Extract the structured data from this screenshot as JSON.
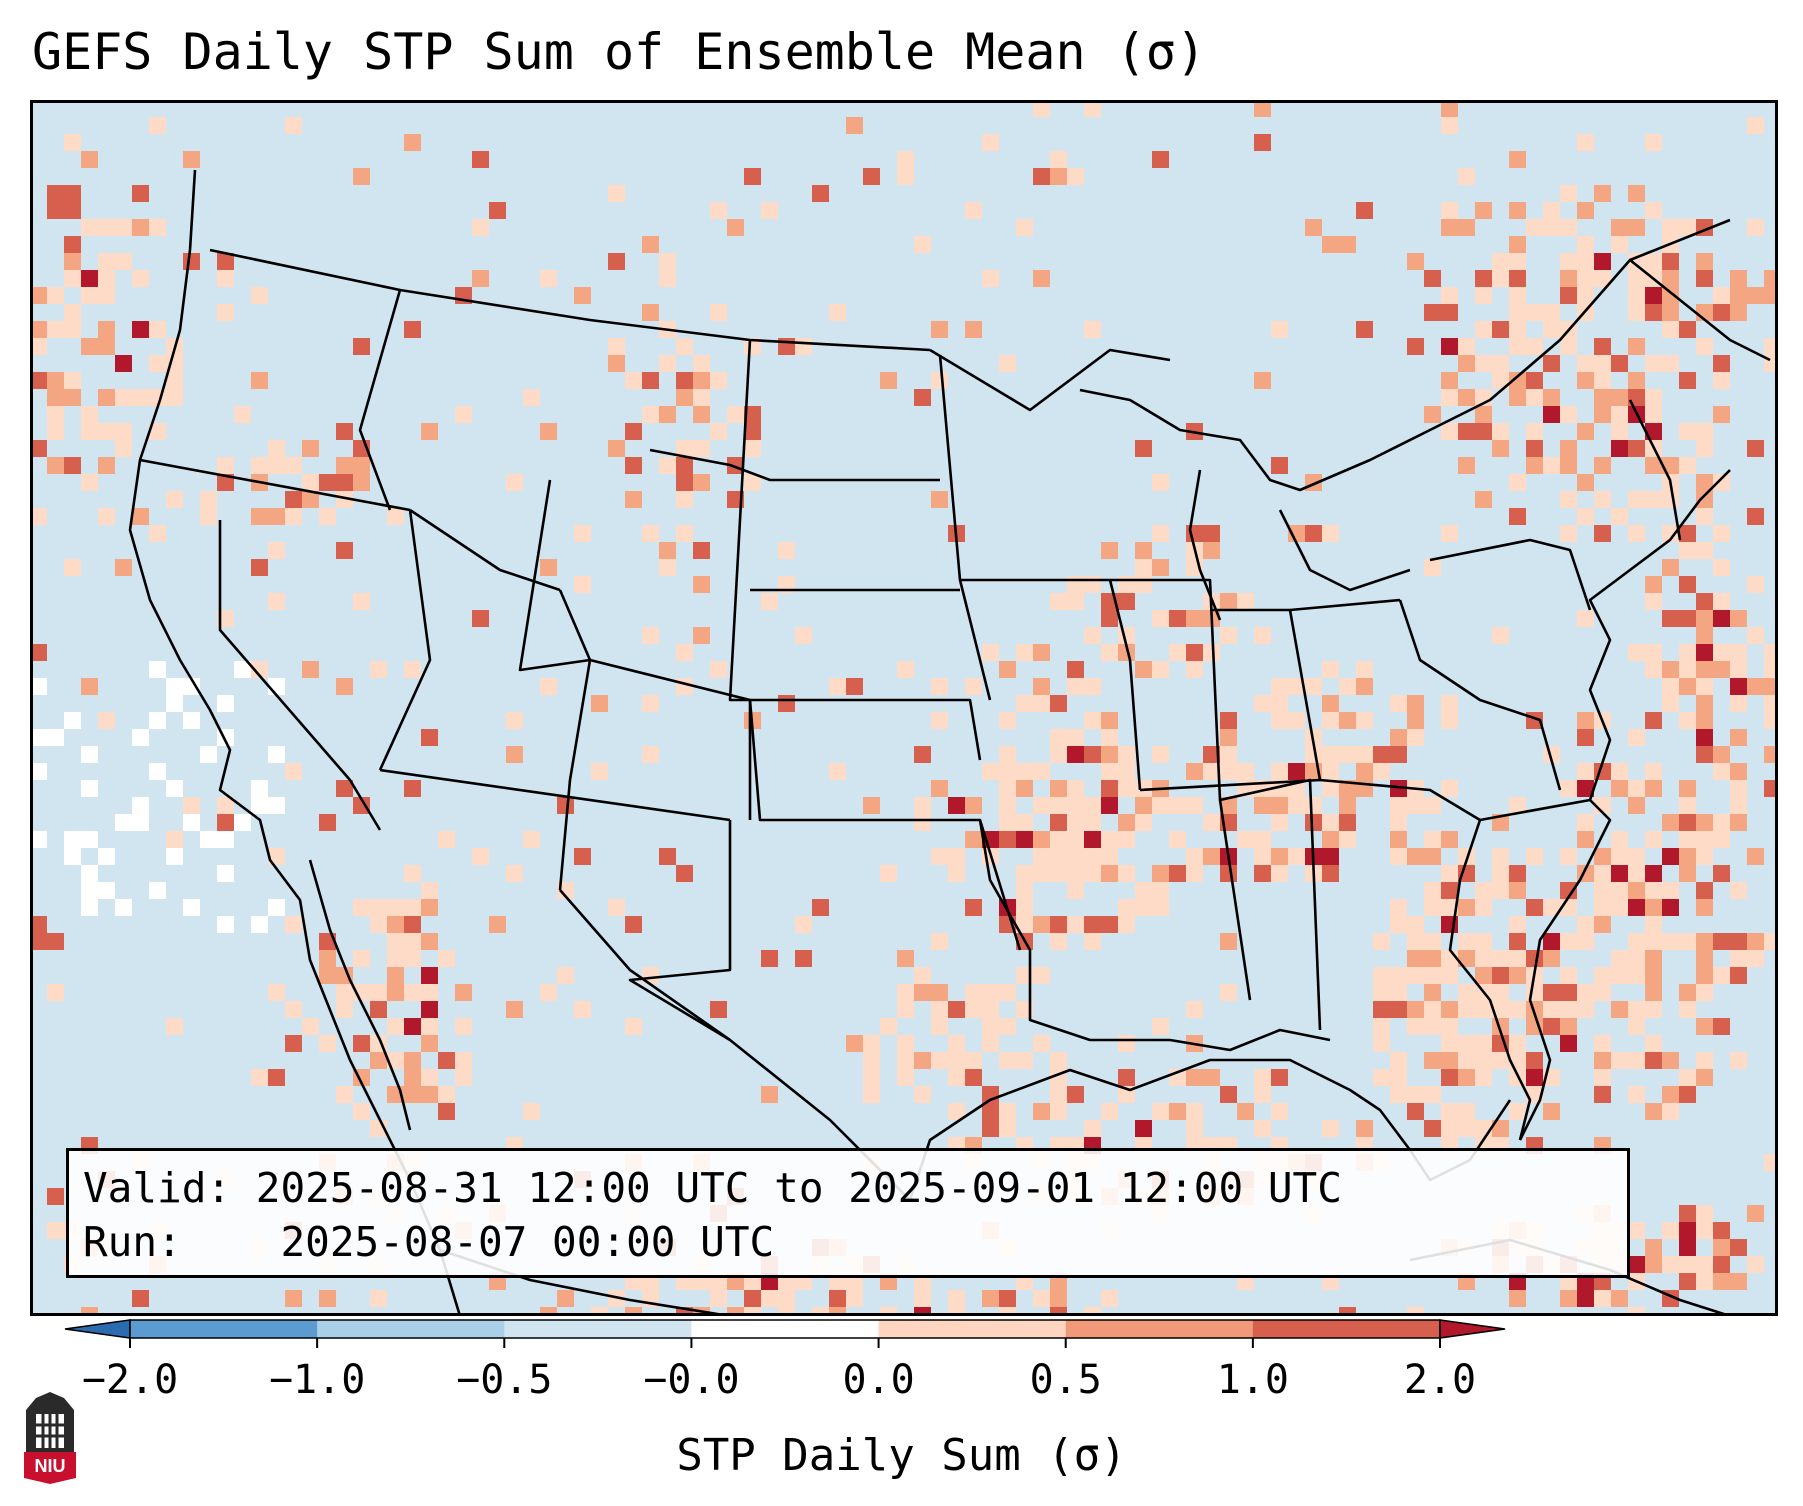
{
  "title": "GEFS Daily STP Sum of Ensemble Mean (σ)",
  "info": {
    "valid_label": "Valid:",
    "valid_value": "2025-08-31 12:00 UTC to 2025-09-01 12:00 UTC",
    "run_label": "Run:",
    "run_value": "2025-08-07 00:00 UTC"
  },
  "colorbar": {
    "label": "STP Daily Sum (σ)",
    "ticks": [
      "−2.0",
      "−1.0",
      "−0.5",
      "−0.0",
      "0.0",
      "0.5",
      "1.0",
      "2.0"
    ],
    "colors": [
      "#2b6cb0",
      "#5b9bd0",
      "#a9d0e6",
      "#d1e5f0",
      "#ffffff",
      "#fdd5c0",
      "#f09a7a",
      "#d6604d",
      "#b2182b"
    ],
    "extend": "both"
  },
  "map": {
    "background_color": "#d1e5f0",
    "border_color": "#000000",
    "field_colors": {
      "neutral": "#d1e5f0",
      "white": "#ffffff",
      "light_red": "#fddbc7",
      "mid_red": "#f4a582",
      "red": "#d6604d",
      "dark_red": "#b2182b",
      "light_blue": "#92c5de"
    }
  },
  "logo": {
    "label": "NIU",
    "color": "#c8102e"
  }
}
